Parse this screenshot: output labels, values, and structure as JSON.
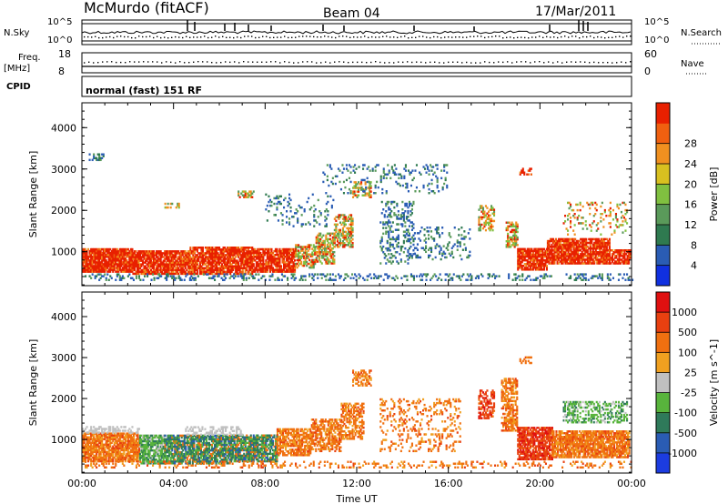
{
  "header": {
    "station": "McMurdo (fitACF)",
    "beam": "Beam 04",
    "date": "17/Mar/2011"
  },
  "strips": {
    "nsky_label": "N.Sky",
    "nsearch_label": "N.Search",
    "noise_top": "10^5",
    "noise_bottom": "10^0",
    "freq_label": "Freq.",
    "freq_unit": "[MHz]",
    "freq_top": "18",
    "freq_bottom": "8",
    "nave_label": "Nave",
    "nave_top": "60",
    "nave_bottom": "0",
    "cpid_label": "CPID",
    "cpid_text": "normal (fast) 151 RF"
  },
  "chart_data": [
    {
      "type": "heatmap",
      "title": "",
      "xlabel": "",
      "ylabel": "Slant Range [km]",
      "xlim": [
        0,
        24
      ],
      "ylim": [
        180,
        4600
      ],
      "x_ticks": [
        "00:00",
        "04:00",
        "08:00",
        "12:00",
        "16:00",
        "20:00",
        "00:00"
      ],
      "y_ticks": [
        "1000",
        "2000",
        "3000",
        "4000"
      ],
      "colorbar": {
        "label": "Power [dB]",
        "ticks": [
          "4",
          "8",
          "12",
          "16",
          "20",
          "24",
          "28"
        ],
        "range": [
          0,
          30
        ],
        "colors": [
          "#1030e0",
          "#2a5cb4",
          "#2f7a50",
          "#5a9a5a",
          "#80c040",
          "#d8c020",
          "#f09020",
          "#f06010",
          "#e82000"
        ]
      }
    },
    {
      "type": "heatmap",
      "title": "",
      "xlabel": "Time UT",
      "ylabel": "Slant Range [km]",
      "xlim": [
        0,
        24
      ],
      "ylim": [
        180,
        4600
      ],
      "x_ticks": [
        "00:00",
        "04:00",
        "08:00",
        "12:00",
        "16:00",
        "20:00",
        "00:00"
      ],
      "y_ticks": [
        "1000",
        "2000",
        "3000",
        "4000"
      ],
      "colorbar": {
        "label": "Velocity [m s^-1]",
        "ticks": [
          "1000",
          "500",
          "100",
          "25",
          "-25",
          "-100",
          "-500",
          "-1000"
        ],
        "range": [
          -1200,
          1200
        ],
        "colors": [
          "#1c3ce0",
          "#2a5cb4",
          "#2f7a5a",
          "#58b43c",
          "#c0c0c0",
          "#f0a020",
          "#f07010",
          "#e84010",
          "#e01010"
        ]
      }
    }
  ]
}
